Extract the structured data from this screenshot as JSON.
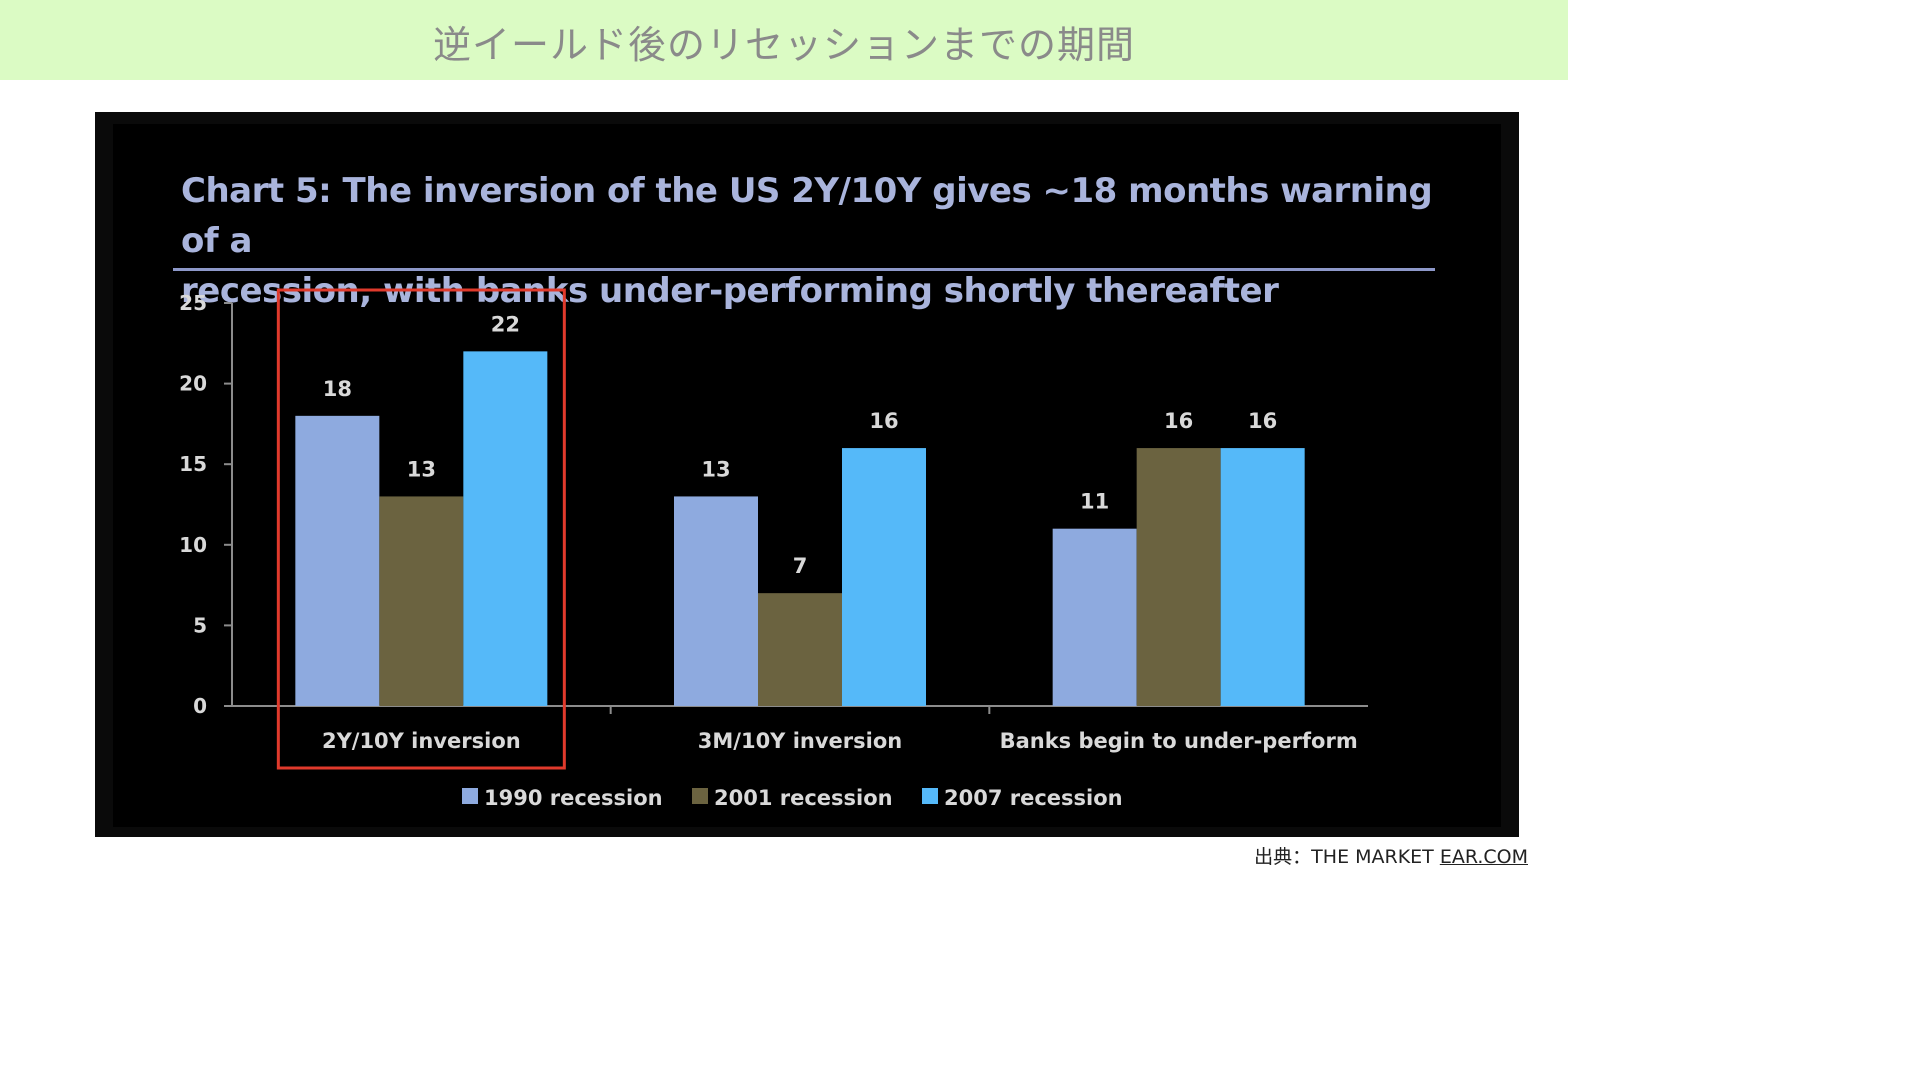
{
  "banner": {
    "title": "逆イールド後のリセッションまでの期間"
  },
  "chart_data": {
    "type": "bar",
    "title": "Chart 5: The inversion of the US 2Y/10Y gives ~18 months warning of a recession, with banks under-performing shortly thereafter",
    "title_lines": [
      "Chart 5: The inversion of the US 2Y/10Y gives ~18 months warning of a",
      "recession, with banks under-performing shortly thereafter"
    ],
    "categories": [
      "2Y/10Y inversion",
      "3M/10Y inversion",
      "Banks begin to under-perform"
    ],
    "series": [
      {
        "name": "1990 recession",
        "values": [
          18,
          13,
          11
        ],
        "color": "#8eaadf"
      },
      {
        "name": "2001 recession",
        "values": [
          13,
          7,
          16
        ],
        "color": "#6b6340"
      },
      {
        "name": "2007 recession",
        "values": [
          22,
          16,
          16
        ],
        "color": "#55b9f9"
      }
    ],
    "ylim": [
      0,
      25
    ],
    "yticks": [
      0,
      5,
      10,
      15,
      20,
      25
    ],
    "xlabel": "",
    "ylabel": "",
    "grid": false,
    "legend": "bottom-center",
    "highlight_category": "2Y/10Y inversion",
    "highlight_color": "#e03a2c",
    "background": "#000000",
    "text_color": "#d9d9d9"
  },
  "source": {
    "prefix": "出典：THE MARKET ",
    "link": "EAR.COM"
  }
}
